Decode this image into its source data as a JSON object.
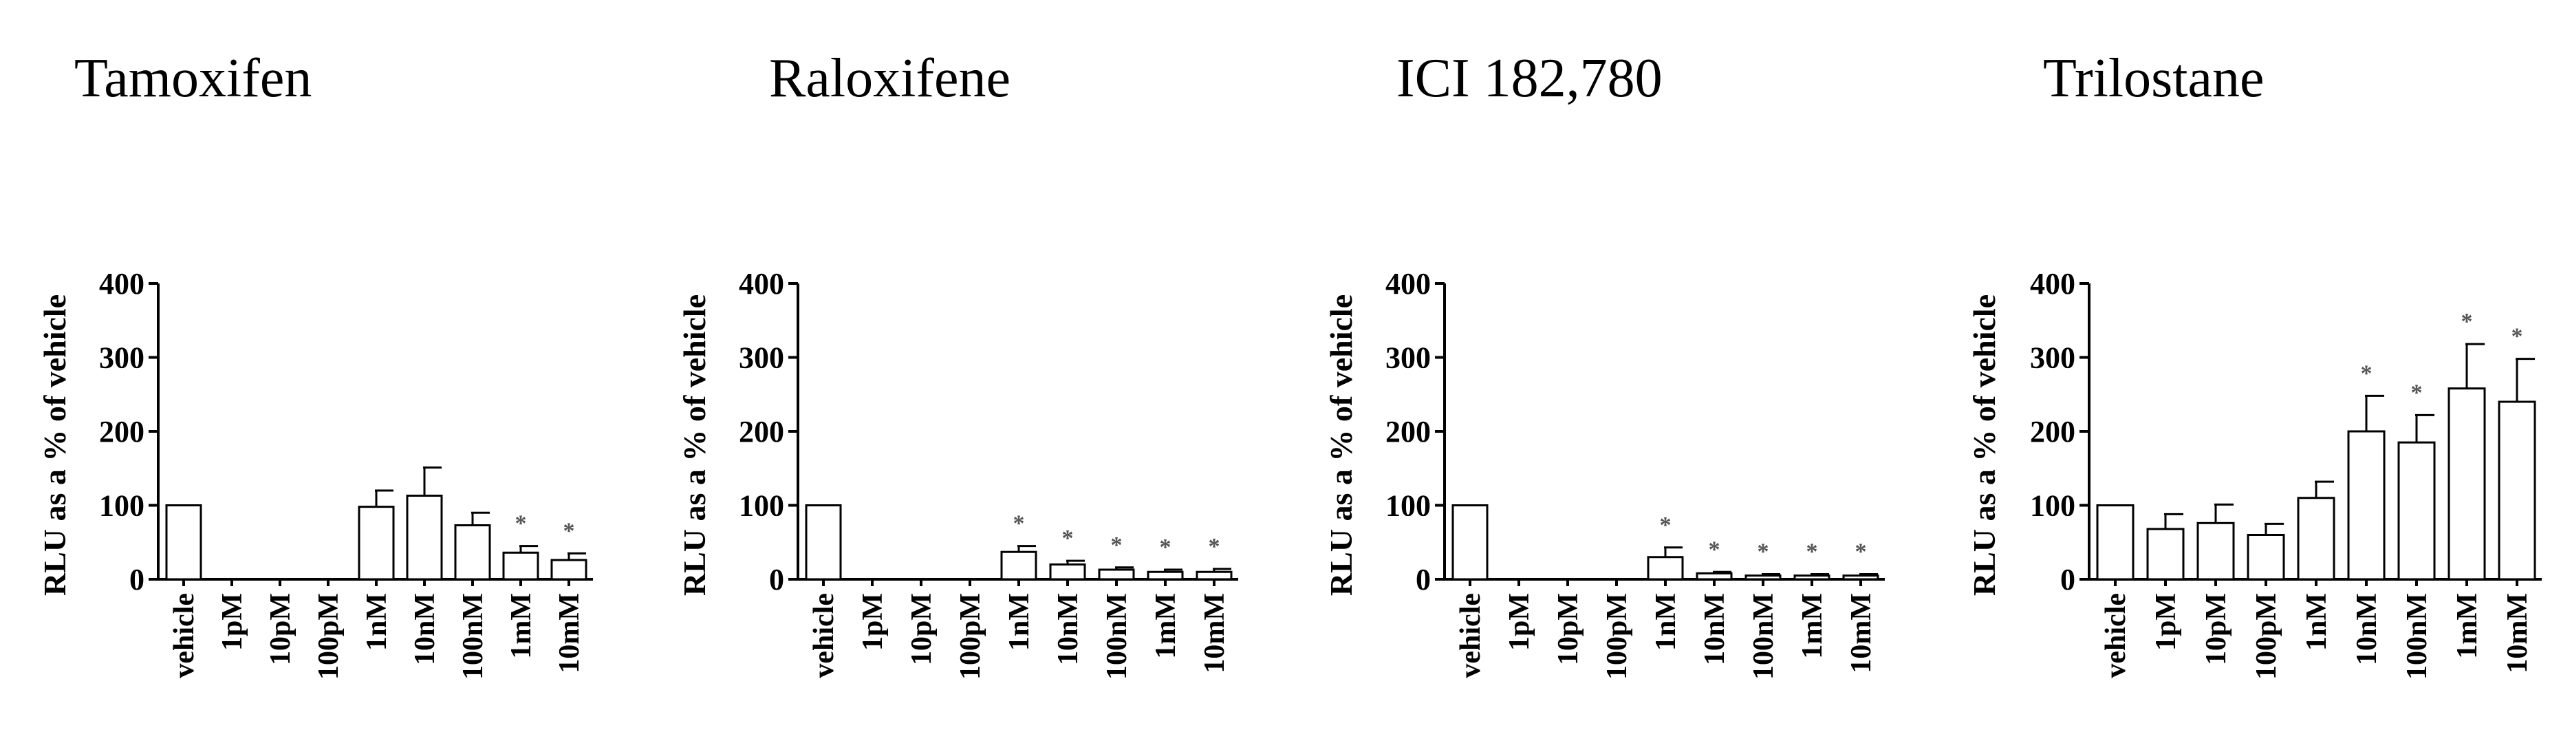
{
  "chart_data": [
    {
      "type": "bar",
      "title": "Tamoxifen",
      "ylabel": "RLU as a % of vehicle",
      "ylim": [
        0,
        400
      ],
      "yticks": [
        "0",
        "100",
        "200",
        "300",
        "400"
      ],
      "categories": [
        "vehicle",
        "1pM",
        "10pM",
        "100pM",
        "1nM",
        "10nM",
        "100nM",
        "1mM",
        "10mM"
      ],
      "values": [
        100,
        0,
        0,
        0,
        98,
        113,
        73,
        36,
        26
      ],
      "errors": [
        0,
        0,
        0,
        0,
        22,
        38,
        17,
        9,
        9
      ],
      "significance": [
        "",
        "",
        "",
        "",
        "",
        "",
        "",
        "*",
        "*"
      ]
    },
    {
      "type": "bar",
      "title": "Raloxifene",
      "ylabel": "RLU as a % of vehicle",
      "ylim": [
        0,
        400
      ],
      "yticks": [
        "0",
        "100",
        "200",
        "300",
        "400"
      ],
      "categories": [
        "vehicle",
        "1pM",
        "10pM",
        "100pM",
        "1nM",
        "10nM",
        "100nM",
        "1mM",
        "10mM"
      ],
      "values": [
        100,
        0,
        0,
        0,
        37,
        20,
        13,
        10,
        10
      ],
      "errors": [
        0,
        0,
        0,
        0,
        8,
        5,
        3,
        3,
        4
      ],
      "significance": [
        "",
        "",
        "",
        "",
        "*",
        "*",
        "*",
        "*",
        "*"
      ]
    },
    {
      "type": "bar",
      "title": "ICI 182,780",
      "ylabel": "RLU as a % of vehicle",
      "ylim": [
        0,
        400
      ],
      "yticks": [
        "0",
        "100",
        "200",
        "300",
        "400"
      ],
      "categories": [
        "vehicle",
        "1pM",
        "10pM",
        "100pM",
        "1nM",
        "10nM",
        "100nM",
        "1mM",
        "10mM"
      ],
      "values": [
        100,
        0,
        0,
        0,
        30,
        8,
        5,
        5,
        5
      ],
      "errors": [
        0,
        0,
        0,
        0,
        13,
        2,
        2,
        2,
        2
      ],
      "significance": [
        "",
        "",
        "",
        "",
        "*",
        "*",
        "*",
        "*",
        "*"
      ]
    },
    {
      "type": "bar",
      "title": "Trilostane",
      "ylabel": "RLU as a % of vehicle",
      "ylim": [
        0,
        400
      ],
      "yticks": [
        "0",
        "100",
        "200",
        "300",
        "400"
      ],
      "categories": [
        "vehicle",
        "1pM",
        "10pM",
        "100pM",
        "1nM",
        "10nM",
        "100nM",
        "1mM",
        "10mM"
      ],
      "values": [
        100,
        68,
        76,
        60,
        110,
        200,
        185,
        258,
        240
      ],
      "errors": [
        0,
        20,
        25,
        15,
        22,
        48,
        37,
        60,
        58
      ],
      "significance": [
        "",
        "",
        "",
        "",
        "",
        "*",
        "*",
        "*",
        "*"
      ]
    }
  ]
}
